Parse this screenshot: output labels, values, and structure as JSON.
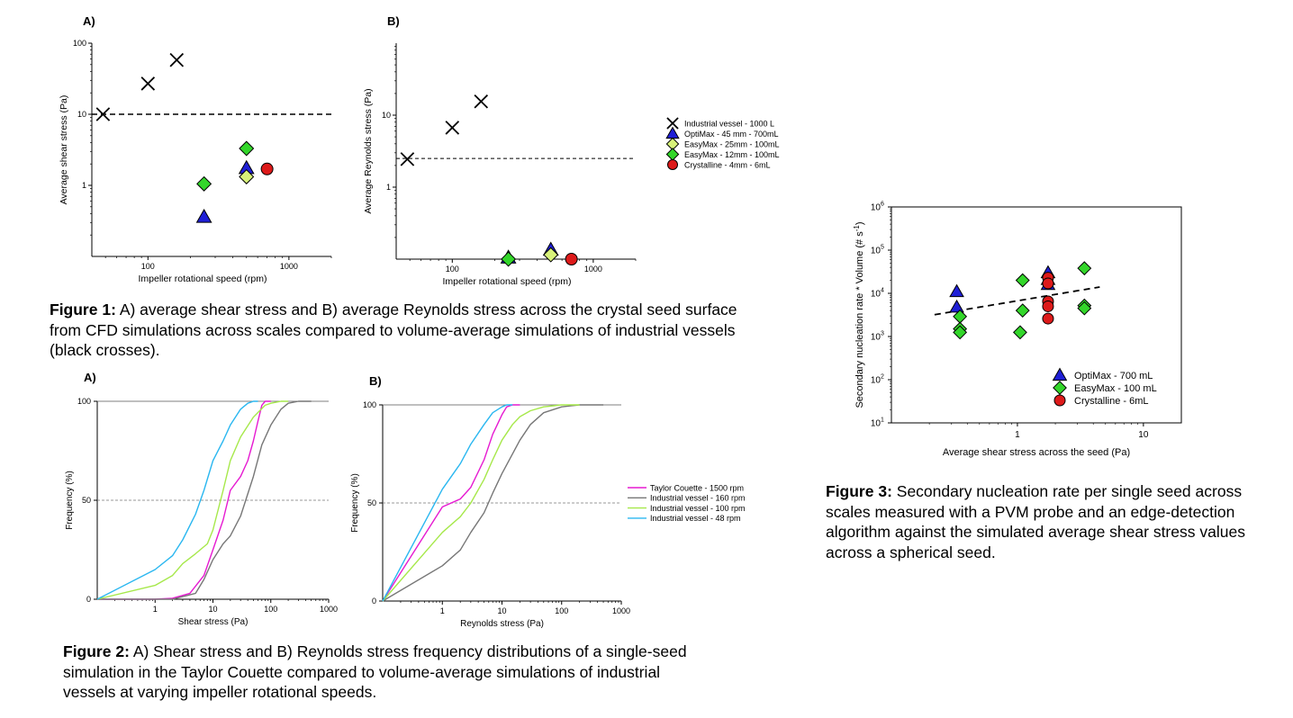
{
  "figure1": {
    "caption_label": "Figure 1:",
    "caption_text": "A) average shear stress and B) average Reynolds stress across the crystal seed surface from CFD simulations across scales compared to volume-average simulations of industrial vessels (black crosses).",
    "legend": [
      {
        "label": "Industrial vessel - 1000 L",
        "marker": "cross",
        "color": "#000000"
      },
      {
        "label": "OptiMax - 45 mm - 700mL",
        "marker": "triangle",
        "color": "#1f1fd6"
      },
      {
        "label": "EasyMax - 25mm - 100mL",
        "marker": "diamond",
        "color": "#d8f27a"
      },
      {
        "label": "EasyMax - 12mm - 100mL",
        "marker": "diamond",
        "color": "#33d62a"
      },
      {
        "label": "Crystalline - 4mm - 6mL",
        "marker": "circle",
        "color": "#dd1a1a"
      }
    ],
    "panelA": {
      "panel_label": "A)",
      "xlabel": "Impeller rotational speed (rpm)",
      "ylabel": "Average shear stress (Pa)",
      "x_ticks": [
        "100",
        "1000"
      ],
      "y_ticks": [
        "100",
        "10",
        "1"
      ],
      "xlim": [
        40,
        2000
      ],
      "ylim": [
        0.1,
        100
      ],
      "reference_line": 10,
      "chart_data": {
        "type": "scatter",
        "series": [
          {
            "name": "Industrial vessel - 1000 L",
            "x": [
              48,
              100,
              160
            ],
            "y": [
              10,
              27,
              58
            ]
          },
          {
            "name": "OptiMax - 45 mm - 700mL",
            "x": [
              250,
              500
            ],
            "y": [
              0.36,
              1.75
            ]
          },
          {
            "name": "EasyMax - 25mm - 100mL",
            "x": [
              500
            ],
            "y": [
              1.32
            ]
          },
          {
            "name": "EasyMax - 12mm - 100mL",
            "x": [
              250,
              500
            ],
            "y": [
              1.05,
              3.3
            ]
          },
          {
            "name": "Crystalline - 4mm - 6mL",
            "x": [
              700
            ],
            "y": [
              1.7
            ]
          }
        ]
      }
    },
    "panelB": {
      "panel_label": "B)",
      "xlabel": "Impeller rotational speed (rpm)",
      "ylabel": "Average Reynolds stress (Pa)",
      "x_ticks": [
        "100",
        "1000"
      ],
      "y_ticks": [
        "10",
        "1"
      ],
      "xlim": [
        40,
        2000
      ],
      "ylim": [
        0.1,
        100
      ],
      "reference_line": 2.5,
      "chart_data": {
        "type": "scatter",
        "series": [
          {
            "name": "Industrial vessel - 1000 L",
            "x": [
              48,
              100,
              160
            ],
            "y": [
              2.45,
              6.7,
              15.5
            ]
          },
          {
            "name": "OptiMax - 45 mm - 700mL",
            "x": [
              250,
              500
            ],
            "y": [
              0.105,
              0.135
            ]
          },
          {
            "name": "EasyMax - 25mm - 100mL",
            "x": [
              500
            ],
            "y": [
              0.115
            ]
          },
          {
            "name": "EasyMax - 12mm - 100mL",
            "x": [
              250
            ],
            "y": [
              0.1
            ]
          },
          {
            "name": "Crystalline - 4mm - 6mL",
            "x": [
              700
            ],
            "y": [
              0.1
            ]
          }
        ]
      }
    }
  },
  "figure2": {
    "caption_label": "Figure 2:",
    "caption_text": "A) Shear stress and B) Reynolds stress frequency distributions of a single-seed simulation in the Taylor Couette compared to volume-average simulations of industrial vessels at varying impeller rotational speeds.",
    "legend": [
      {
        "label": "Taylor Couette - 1500 rpm",
        "color": "#e61ad1"
      },
      {
        "label": "Industrial vessel - 160 rpm",
        "color": "#777777"
      },
      {
        "label": "Industrial vessel - 100 rpm",
        "color": "#a6e84a"
      },
      {
        "label": "Industrial vessel - 48 rpm",
        "color": "#2ab7f0"
      }
    ],
    "panelA": {
      "panel_label": "A)",
      "xlabel": "Shear stress (Pa)",
      "ylabel": "Frequency (%)",
      "x_ticks": [
        "1",
        "10",
        "100",
        "1000"
      ],
      "y_ticks": [
        "100",
        "50",
        "0"
      ],
      "reference_line": 50,
      "chart_data": {
        "type": "line",
        "xlim": [
          0.1,
          1000
        ],
        "ylim": [
          0,
          100
        ],
        "series": [
          {
            "name": "Taylor Couette - 1500 rpm",
            "x": [
              0.1,
              1,
              2,
              4,
              7,
              10,
              15,
              20,
              30,
              40,
              50,
              60,
              70,
              80,
              100
            ],
            "y": [
              0,
              0,
              0.5,
              3,
              12,
              25,
              40,
              55,
              62,
              70,
              80,
              90,
              98,
              100,
              100
            ]
          },
          {
            "name": "Industrial vessel - 160 rpm",
            "x": [
              0.1,
              2,
              5,
              7,
              10,
              15,
              20,
              30,
              50,
              70,
              100,
              150,
              200,
              300,
              500
            ],
            "y": [
              0,
              0,
              3,
              10,
              20,
              28,
              32,
              42,
              62,
              78,
              88,
              96,
              99,
              100,
              100
            ]
          },
          {
            "name": "Industrial vessel - 100 rpm",
            "x": [
              0.1,
              1,
              2,
              3,
              5,
              8,
              10,
              15,
              20,
              30,
              50,
              80,
              100,
              150,
              200
            ],
            "y": [
              0,
              7,
              12,
              18,
              23,
              28,
              35,
              55,
              70,
              82,
              92,
              98,
              99,
              100,
              100
            ]
          },
          {
            "name": "Industrial vessel - 48 rpm",
            "x": [
              0.1,
              1,
              2,
              3,
              5,
              7,
              10,
              15,
              20,
              30,
              40,
              50,
              60
            ],
            "y": [
              0,
              15,
              22,
              30,
              43,
              55,
              70,
              80,
              88,
              96,
              99,
              100,
              100
            ]
          }
        ]
      }
    },
    "panelB": {
      "panel_label": "B)",
      "xlabel": "Reynolds stress (Pa)",
      "ylabel": "Frequency (%)",
      "x_ticks": [
        "1",
        "10",
        "100",
        "1000"
      ],
      "y_ticks": [
        "100",
        "50",
        "0"
      ],
      "reference_line": 50,
      "chart_data": {
        "type": "line",
        "xlim": [
          0.1,
          1000
        ],
        "ylim": [
          0,
          100
        ],
        "series": [
          {
            "name": "Taylor Couette - 1500 rpm",
            "x": [
              0.1,
              1,
              2,
              3,
              5,
              7,
              10,
              12,
              15,
              20
            ],
            "y": [
              0,
              48,
              52,
              58,
              72,
              85,
              95,
              99,
              100,
              100
            ]
          },
          {
            "name": "Industrial vessel - 160 rpm",
            "x": [
              0.1,
              1,
              2,
              3,
              5,
              7,
              10,
              20,
              30,
              50,
              100,
              200,
              500
            ],
            "y": [
              0,
              18,
              26,
              35,
              45,
              55,
              65,
              82,
              90,
              96,
              99,
              100,
              100
            ]
          },
          {
            "name": "Industrial vessel - 100 rpm",
            "x": [
              0.1,
              1,
              2,
              3,
              5,
              7,
              10,
              15,
              20,
              30,
              50,
              100,
              200
            ],
            "y": [
              0,
              35,
              43,
              50,
              62,
              72,
              82,
              90,
              94,
              97,
              99,
              100,
              100
            ]
          },
          {
            "name": "Industrial vessel - 48 rpm",
            "x": [
              0.1,
              1,
              2,
              3,
              5,
              7,
              10,
              12,
              15
            ],
            "y": [
              0,
              57,
              70,
              80,
              90,
              96,
              99,
              100,
              100
            ]
          }
        ]
      }
    }
  },
  "figure3": {
    "caption_label": "Figure 3:",
    "caption_text": "Secondary nucleation rate per single seed across scales measured with a PVM probe and an edge-detection algorithm against the simulated average shear stress values across a spherical seed.",
    "xlabel": "Average shear stress across the seed (Pa)",
    "ylabel_main": "Secondary nucleation rate * Volume (# s",
    "ylabel_sup": "-1",
    "ylabel_end": ")",
    "x_ticks": [
      "1",
      "10"
    ],
    "y_ticks": [
      {
        "base": "10",
        "exp": "6"
      },
      {
        "base": "10",
        "exp": "5"
      },
      {
        "base": "10",
        "exp": "4"
      },
      {
        "base": "10",
        "exp": "3"
      },
      {
        "base": "10",
        "exp": "2"
      },
      {
        "base": "10",
        "exp": "1"
      }
    ],
    "legend": [
      {
        "label": "OptiMax - 700 mL",
        "marker": "triangle",
        "color": "#1f1fd6"
      },
      {
        "label": "EasyMax - 100 mL",
        "marker": "diamond",
        "color": "#33d62a"
      },
      {
        "label": "Crystalline - 6mL",
        "marker": "circle",
        "color": "#dd1a1a"
      }
    ],
    "chart_data": {
      "type": "scatter",
      "xlim": [
        0.1,
        20
      ],
      "ylim": [
        10,
        1000000
      ],
      "trend": {
        "x": [
          0.22,
          4.5
        ],
        "y": [
          3200,
          14000
        ]
      },
      "series": [
        {
          "name": "OptiMax - 700 mL",
          "x": [
            0.33,
            0.33,
            1.75,
            1.75,
            1.75
          ],
          "y": [
            11000,
            4800,
            30000,
            21000,
            16000
          ]
        },
        {
          "name": "EasyMax - 100 mL",
          "x": [
            0.35,
            0.35,
            0.35,
            1.1,
            1.1,
            1.05,
            3.4,
            3.4,
            3.4
          ],
          "y": [
            2900,
            1500,
            1250,
            20000,
            4000,
            1250,
            38000,
            5200,
            4500
          ]
        },
        {
          "name": "Crystalline - 6mL",
          "x": [
            1.75,
            1.75,
            1.75,
            1.75,
            1.75
          ],
          "y": [
            23000,
            17000,
            6500,
            5000,
            2600
          ]
        }
      ]
    }
  }
}
